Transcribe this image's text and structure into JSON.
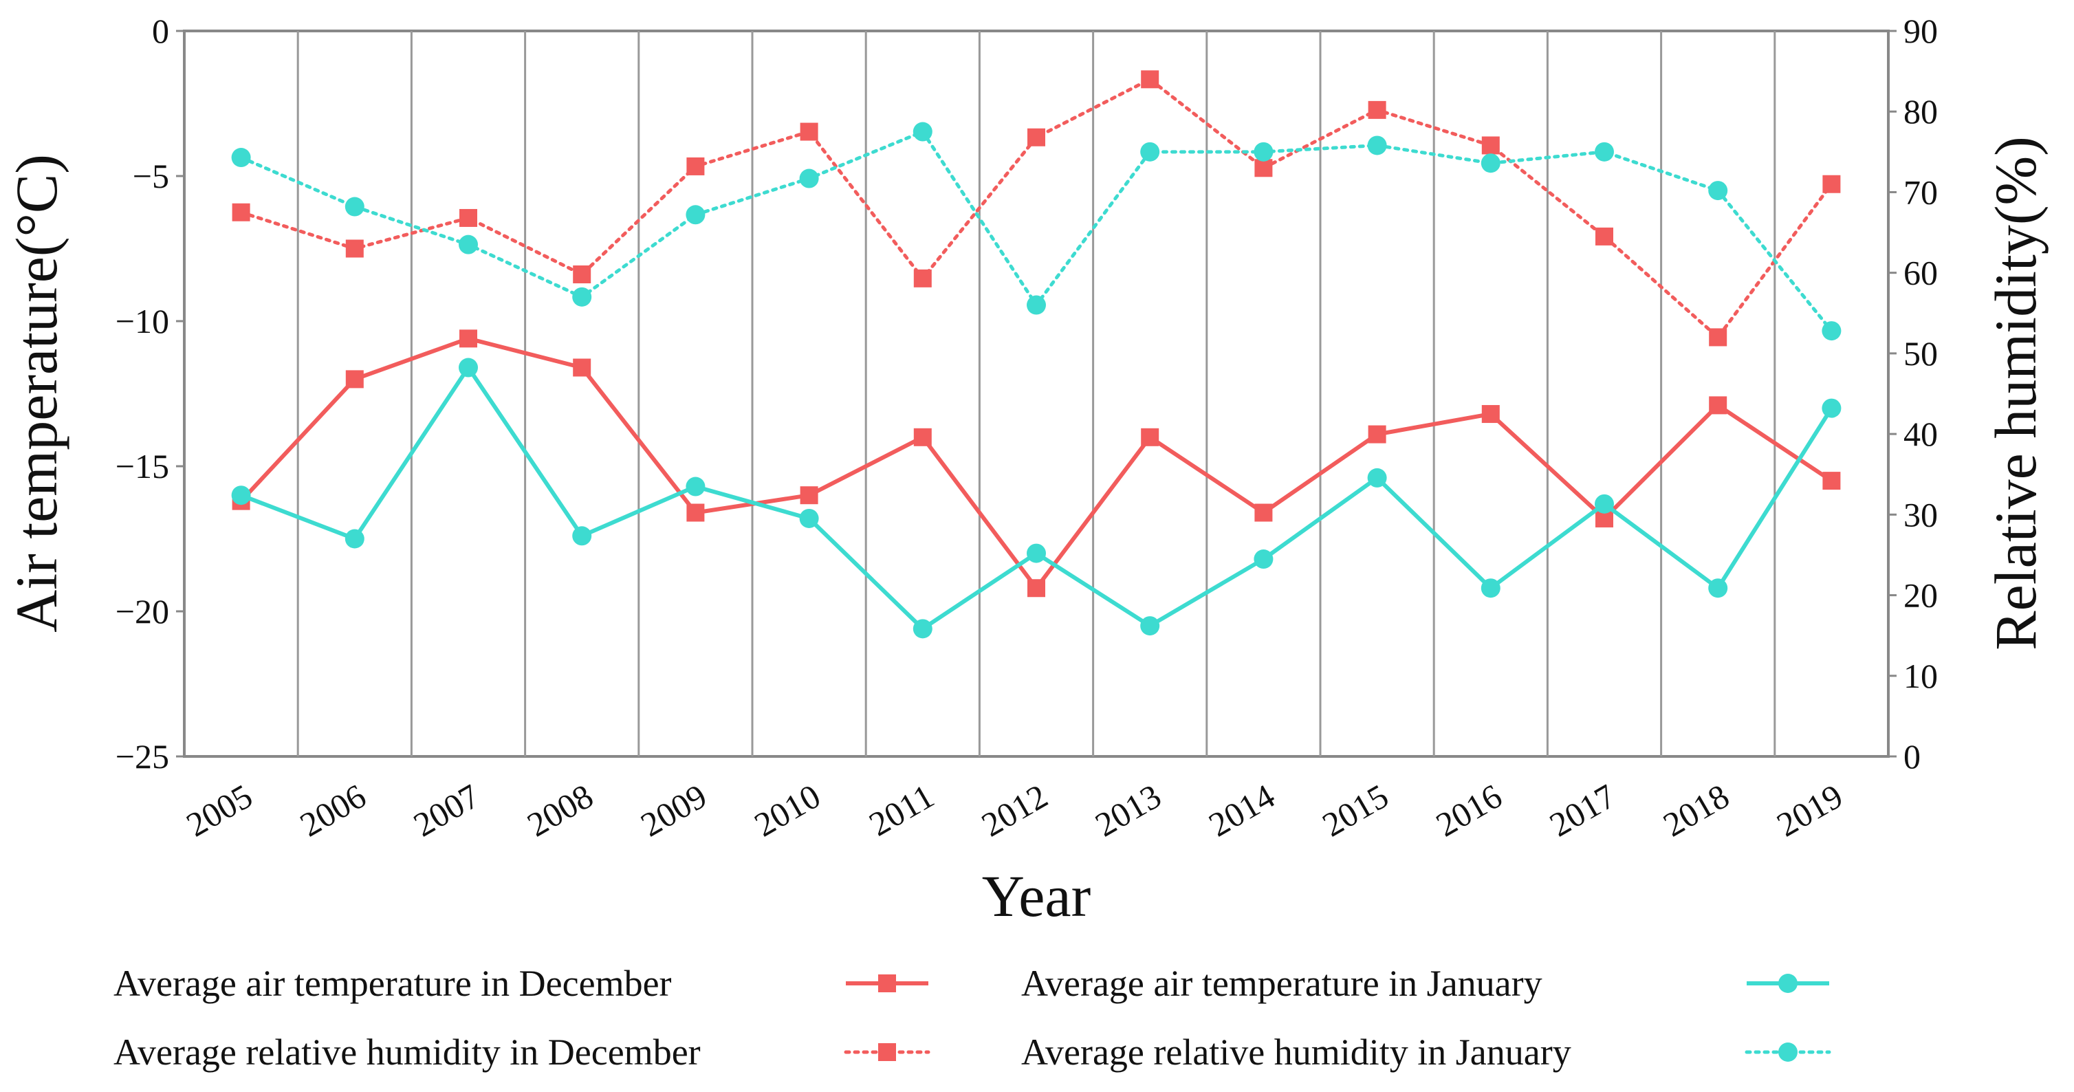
{
  "chart_data": {
    "type": "line",
    "categories": [
      "2005",
      "2006",
      "2007",
      "2008",
      "2009",
      "2010",
      "2011",
      "2012",
      "2013",
      "2014",
      "2015",
      "2016",
      "2017",
      "2018",
      "2019"
    ],
    "xlabel": "Year",
    "ylabel": "Air temperature(°C)",
    "y2label": "Relative humidity(%)",
    "ylim": [
      -25,
      0
    ],
    "y2lim": [
      0,
      90
    ],
    "yticks": [
      "0",
      "−5",
      "−10",
      "−15",
      "−20",
      "−25"
    ],
    "y2ticks": [
      "90",
      "80",
      "70",
      "60",
      "50",
      "40",
      "30",
      "20",
      "10",
      "0"
    ],
    "legend_position": "bottom",
    "colors": {
      "december": "#f25c5c",
      "january": "#3ddbd0",
      "grid": "#999999"
    },
    "series": [
      {
        "name": "Average air temperature in December",
        "axis": "left",
        "style": "solid",
        "marker": "square",
        "color": "#f25c5c",
        "values": [
          -16.2,
          -12.0,
          -10.6,
          -11.6,
          -16.6,
          -16.0,
          -14.0,
          -19.2,
          -14.0,
          -16.6,
          -13.9,
          -13.2,
          -16.8,
          -12.9,
          -15.5
        ]
      },
      {
        "name": "Average air temperature in January",
        "axis": "left",
        "style": "solid",
        "marker": "circle",
        "color": "#3ddbd0",
        "values": [
          -16.0,
          -17.5,
          -11.6,
          -17.4,
          -15.7,
          -16.8,
          -20.6,
          -18.0,
          -20.5,
          -18.2,
          -15.4,
          -19.2,
          -16.3,
          -19.2,
          -13.0
        ]
      },
      {
        "name": "Average relative humidity in December",
        "axis": "right",
        "style": "dotted",
        "marker": "square",
        "color": "#f25c5c",
        "values": [
          67.5,
          63.0,
          66.8,
          59.8,
          73.2,
          77.5,
          59.3,
          76.8,
          84.0,
          73.0,
          80.2,
          75.8,
          64.5,
          52.0,
          71.0
        ]
      },
      {
        "name": "Average relative humidity in January",
        "axis": "right",
        "style": "dotted",
        "marker": "circle",
        "color": "#3ddbd0",
        "values": [
          74.3,
          68.2,
          63.5,
          57.0,
          67.2,
          71.7,
          77.5,
          56.0,
          75.0,
          75.0,
          75.8,
          73.6,
          75.0,
          70.2,
          52.8
        ]
      }
    ],
    "legend": [
      {
        "label": "Average air temperature in December",
        "series": 0
      },
      {
        "label": "Average air temperature in January",
        "series": 1
      },
      {
        "label": "Average relative humidity in December",
        "series": 2
      },
      {
        "label": "Average relative humidity in January",
        "series": 3
      }
    ]
  }
}
